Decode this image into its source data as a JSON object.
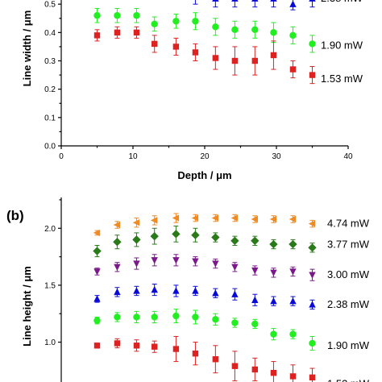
{
  "chart_data": [
    {
      "panel_label": "",
      "type": "scatter",
      "xlabel": "Depth / μm",
      "ylabel": "Line width / μm",
      "xlim": [
        0,
        40
      ],
      "ylim": [
        0.0,
        0.6
      ],
      "xticks": [
        "0",
        "10",
        "20",
        "30",
        "40"
      ],
      "yticks": [
        "0.0",
        "0.1",
        "0.2",
        "0.3",
        "0.4",
        "0.5"
      ],
      "x": [
        5,
        7.8,
        10.5,
        13,
        16,
        18.7,
        21.5,
        24.2,
        27,
        29.6,
        32.3,
        35
      ],
      "series": [
        {
          "name": "2.38 mW",
          "color": "#0a0ad8",
          "marker": "triangle-up",
          "values": [
            0.56,
            0.57,
            0.56,
            0.54,
            0.54,
            0.53,
            0.52,
            0.52,
            0.52,
            0.52,
            0.5,
            0.52
          ],
          "errors": [
            0.02,
            0.02,
            0.02,
            0.02,
            0.02,
            0.03,
            0.03,
            0.03,
            0.03,
            0.03,
            0.02,
            0.03
          ]
        },
        {
          "name": "1.90 mW",
          "color": "#22ee22",
          "marker": "circle",
          "values": [
            0.46,
            0.46,
            0.46,
            0.43,
            0.44,
            0.44,
            0.42,
            0.41,
            0.41,
            0.4,
            0.39,
            0.36
          ],
          "errors": [
            0.025,
            0.025,
            0.025,
            0.025,
            0.025,
            0.03,
            0.03,
            0.03,
            0.03,
            0.035,
            0.03,
            0.03
          ]
        },
        {
          "name": "1.53 mW",
          "color": "#dd2222",
          "marker": "square",
          "values": [
            0.39,
            0.4,
            0.4,
            0.36,
            0.35,
            0.33,
            0.31,
            0.3,
            0.3,
            0.32,
            0.27,
            0.25
          ],
          "errors": [
            0.02,
            0.02,
            0.02,
            0.03,
            0.03,
            0.03,
            0.04,
            0.05,
            0.05,
            0.05,
            0.03,
            0.03
          ]
        }
      ]
    },
    {
      "panel_label": "(b)",
      "type": "scatter",
      "xlabel": "",
      "ylabel": "Line height / μm",
      "xlim": [
        0,
        40
      ],
      "ylim": [
        0.65,
        2.2
      ],
      "yticks": [
        "1.0",
        "1.5",
        "2.0"
      ],
      "x": [
        5,
        7.8,
        10.5,
        13,
        16,
        18.7,
        21.5,
        24.2,
        27,
        29.6,
        32.3,
        35
      ],
      "series": [
        {
          "name": "4.74 mW",
          "color": "#f08a24",
          "marker": "triangle-left",
          "values": [
            1.96,
            2.03,
            2.05,
            2.07,
            2.09,
            2.09,
            2.09,
            2.09,
            2.08,
            2.08,
            2.08,
            2.04
          ],
          "errors": [
            0.02,
            0.03,
            0.04,
            0.04,
            0.04,
            0.03,
            0.03,
            0.03,
            0.03,
            0.03,
            0.03,
            0.03
          ]
        },
        {
          "name": "3.77 mW",
          "color": "#2a7a1a",
          "marker": "diamond",
          "values": [
            1.8,
            1.88,
            1.9,
            1.93,
            1.95,
            1.94,
            1.92,
            1.89,
            1.89,
            1.86,
            1.86,
            1.83
          ],
          "errors": [
            0.05,
            0.06,
            0.06,
            0.07,
            0.07,
            0.06,
            0.04,
            0.04,
            0.04,
            0.04,
            0.04,
            0.04
          ]
        },
        {
          "name": "3.00 mW",
          "color": "#7a1a8a",
          "marker": "triangle-down",
          "values": [
            1.62,
            1.66,
            1.69,
            1.72,
            1.72,
            1.71,
            1.69,
            1.66,
            1.63,
            1.61,
            1.62,
            1.59
          ],
          "errors": [
            0.03,
            0.04,
            0.05,
            0.05,
            0.05,
            0.04,
            0.04,
            0.04,
            0.04,
            0.04,
            0.04,
            0.05
          ]
        },
        {
          "name": "2.38 mW",
          "color": "#0a0ad8",
          "marker": "triangle-up",
          "values": [
            1.38,
            1.44,
            1.45,
            1.46,
            1.45,
            1.45,
            1.43,
            1.42,
            1.37,
            1.36,
            1.36,
            1.33
          ],
          "errors": [
            0.03,
            0.04,
            0.04,
            0.05,
            0.05,
            0.04,
            0.04,
            0.05,
            0.05,
            0.04,
            0.04,
            0.04
          ]
        },
        {
          "name": "1.90 mW",
          "color": "#22ee22",
          "marker": "circle",
          "values": [
            1.19,
            1.22,
            1.22,
            1.22,
            1.23,
            1.22,
            1.2,
            1.17,
            1.16,
            1.07,
            1.07,
            0.99
          ],
          "errors": [
            0.03,
            0.04,
            0.05,
            0.05,
            0.06,
            0.06,
            0.05,
            0.04,
            0.04,
            0.05,
            0.04,
            0.06
          ]
        },
        {
          "name": "1.53 mW",
          "color": "#dd2222",
          "marker": "square",
          "values": [
            0.97,
            0.99,
            0.97,
            0.96,
            0.94,
            0.9,
            0.85,
            0.79,
            0.76,
            0.73,
            0.7,
            0.69
          ],
          "errors": [
            0.02,
            0.04,
            0.05,
            0.05,
            0.11,
            0.1,
            0.12,
            0.13,
            0.1,
            0.1,
            0.1,
            0.08
          ]
        }
      ],
      "partial_legend_label": "1.53 mW"
    }
  ]
}
